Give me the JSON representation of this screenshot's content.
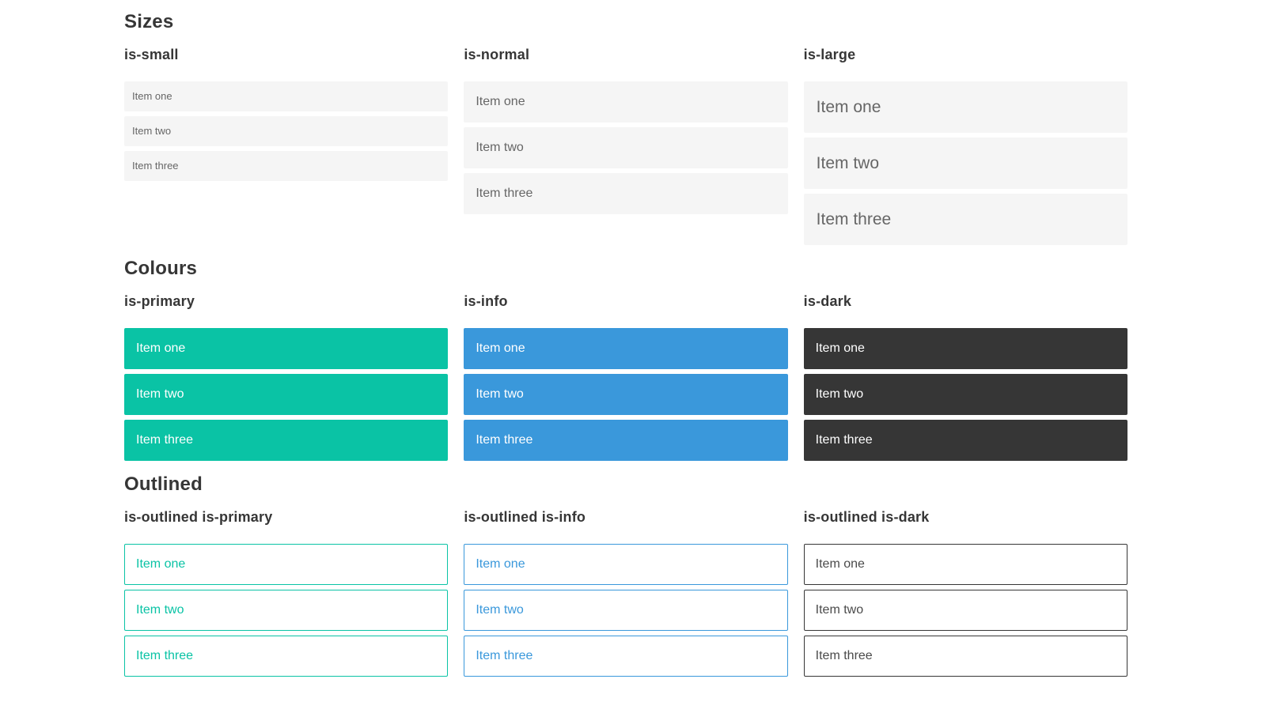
{
  "sections": [
    {
      "id": "sizes",
      "title": "Sizes",
      "groups": [
        {
          "label": "is-small",
          "size": "small",
          "color": "default",
          "outlined": false,
          "items": [
            "Item one",
            "Item two",
            "Item three"
          ]
        },
        {
          "label": "is-normal",
          "size": "normal",
          "color": "default",
          "outlined": false,
          "items": [
            "Item one",
            "Item two",
            "Item three"
          ]
        },
        {
          "label": "is-large",
          "size": "large",
          "color": "default",
          "outlined": false,
          "items": [
            "Item one",
            "Item two",
            "Item three"
          ]
        }
      ]
    },
    {
      "id": "colours",
      "title": "Colours",
      "groups": [
        {
          "label": "is-primary",
          "size": "normal",
          "color": "primary",
          "outlined": false,
          "items": [
            "Item one",
            "Item two",
            "Item three"
          ]
        },
        {
          "label": "is-info",
          "size": "normal",
          "color": "info",
          "outlined": false,
          "items": [
            "Item one",
            "Item two",
            "Item three"
          ]
        },
        {
          "label": "is-dark",
          "size": "normal",
          "color": "dark",
          "outlined": false,
          "items": [
            "Item one",
            "Item two",
            "Item three"
          ]
        }
      ]
    },
    {
      "id": "outlined",
      "title": "Outlined",
      "groups": [
        {
          "label": "is-outlined is-primary",
          "size": "normal",
          "color": "primary",
          "outlined": true,
          "items": [
            "Item one",
            "Item two",
            "Item three"
          ]
        },
        {
          "label": "is-outlined is-info",
          "size": "normal",
          "color": "info",
          "outlined": true,
          "items": [
            "Item one",
            "Item two",
            "Item three"
          ]
        },
        {
          "label": "is-outlined is-dark",
          "size": "normal",
          "color": "dark",
          "outlined": true,
          "items": [
            "Item one",
            "Item two",
            "Item three"
          ]
        }
      ]
    }
  ],
  "colors": {
    "primary": "#0ac3a5",
    "info": "#3a98db",
    "dark": "#363636",
    "list_bg": "#f5f5f5",
    "list_text": "#666666",
    "heading_text": "#363636",
    "colored_item_text": "#ffffff",
    "outlined_dark_text": "#4a4a4a",
    "page_bg": "#ffffff"
  }
}
